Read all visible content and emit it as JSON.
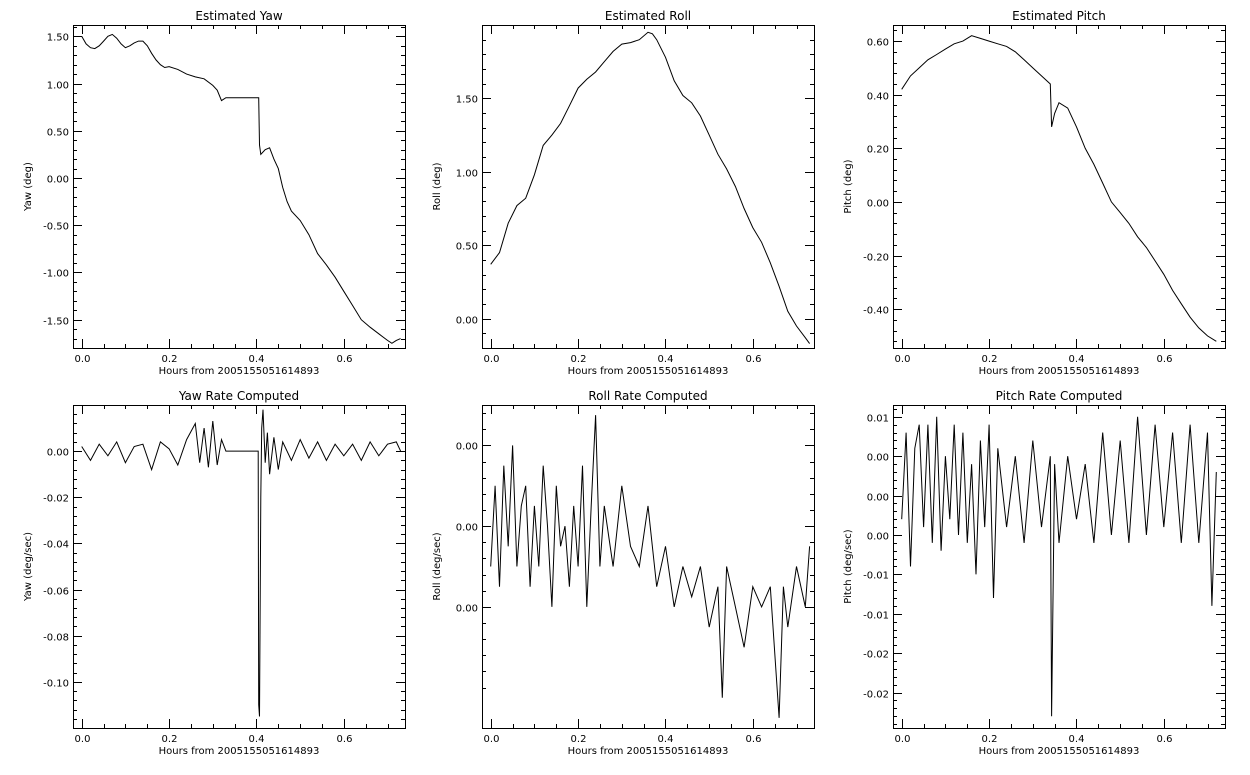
{
  "chart_data": [
    {
      "type": "line",
      "title": "Estimated Yaw",
      "xlabel": "Hours from 2005155051614893",
      "ylabel": "Yaw (deg)",
      "xlim": [
        -0.02,
        0.74
      ],
      "ylim": [
        -1.8,
        1.62
      ],
      "xticks": [
        0.0,
        0.2,
        0.4,
        0.6
      ],
      "xticklabels": [
        "0.0",
        "0.2",
        "0.4",
        "0.6"
      ],
      "yticks": [
        1.5,
        1.0,
        0.5,
        0.0,
        -0.5,
        -1.0,
        -1.5
      ],
      "yticklabels": [
        "1.50",
        "1.00",
        "0.50",
        "0.00",
        "-0.50",
        "-1.00",
        "-1.50"
      ],
      "series": [
        {
          "x": [
            0.0,
            0.01,
            0.02,
            0.03,
            0.04,
            0.05,
            0.06,
            0.07,
            0.08,
            0.09,
            0.1,
            0.11,
            0.12,
            0.13,
            0.14,
            0.15,
            0.16,
            0.17,
            0.18,
            0.19,
            0.2,
            0.22,
            0.24,
            0.26,
            0.28,
            0.3,
            0.31,
            0.32,
            0.33,
            0.36,
            0.405,
            0.407,
            0.41,
            0.42,
            0.43,
            0.44,
            0.45,
            0.46,
            0.47,
            0.48,
            0.5,
            0.52,
            0.54,
            0.56,
            0.58,
            0.6,
            0.62,
            0.64,
            0.66,
            0.68,
            0.7,
            0.71,
            0.72,
            0.73
          ],
          "y": [
            1.5,
            1.42,
            1.38,
            1.37,
            1.4,
            1.45,
            1.5,
            1.52,
            1.48,
            1.42,
            1.38,
            1.4,
            1.43,
            1.45,
            1.45,
            1.4,
            1.32,
            1.25,
            1.2,
            1.17,
            1.18,
            1.15,
            1.1,
            1.07,
            1.05,
            0.98,
            0.93,
            0.82,
            0.85,
            0.85,
            0.85,
            0.35,
            0.25,
            0.3,
            0.32,
            0.2,
            0.1,
            -0.1,
            -0.25,
            -0.35,
            -0.45,
            -0.6,
            -0.8,
            -0.92,
            -1.05,
            -1.2,
            -1.35,
            -1.5,
            -1.58,
            -1.65,
            -1.72,
            -1.75,
            -1.72,
            -1.7
          ]
        }
      ]
    },
    {
      "type": "line",
      "title": "Estimated Roll",
      "xlabel": "Hours from 2005155051614893",
      "ylabel": "Roll (deg)",
      "xlim": [
        -0.02,
        0.74
      ],
      "ylim": [
        -0.2,
        2.0
      ],
      "xticks": [
        0.0,
        0.2,
        0.4,
        0.6
      ],
      "xticklabels": [
        "0.0",
        "0.2",
        "0.4",
        "0.6"
      ],
      "yticks": [
        1.5,
        1.0,
        0.5,
        0.0
      ],
      "yticklabels": [
        "1.50",
        "1.00",
        "0.50",
        "0.00"
      ],
      "series": [
        {
          "x": [
            0.0,
            0.02,
            0.04,
            0.06,
            0.08,
            0.1,
            0.12,
            0.14,
            0.16,
            0.18,
            0.2,
            0.22,
            0.24,
            0.26,
            0.28,
            0.3,
            0.32,
            0.34,
            0.36,
            0.37,
            0.38,
            0.4,
            0.42,
            0.44,
            0.46,
            0.48,
            0.5,
            0.52,
            0.54,
            0.56,
            0.58,
            0.6,
            0.62,
            0.64,
            0.66,
            0.68,
            0.7,
            0.72,
            0.73
          ],
          "y": [
            0.37,
            0.45,
            0.65,
            0.77,
            0.82,
            0.98,
            1.18,
            1.25,
            1.33,
            1.45,
            1.57,
            1.63,
            1.68,
            1.75,
            1.82,
            1.87,
            1.88,
            1.9,
            1.95,
            1.94,
            1.9,
            1.78,
            1.62,
            1.52,
            1.47,
            1.38,
            1.25,
            1.12,
            1.02,
            0.9,
            0.75,
            0.62,
            0.52,
            0.38,
            0.22,
            0.05,
            -0.05,
            -0.13,
            -0.17
          ]
        }
      ]
    },
    {
      "type": "line",
      "title": "Estimated Pitch",
      "xlabel": "Hours from 2005155051614893",
      "ylabel": "Pitch (deg)",
      "xlim": [
        -0.02,
        0.74
      ],
      "ylim": [
        -0.545,
        0.66
      ],
      "xticks": [
        0.0,
        0.2,
        0.4,
        0.6
      ],
      "xticklabels": [
        "0.0",
        "0.2",
        "0.4",
        "0.6"
      ],
      "yticks": [
        0.6,
        0.4,
        0.2,
        0.0,
        -0.2,
        -0.4
      ],
      "yticklabels": [
        "0.60",
        "0.40",
        "0.20",
        "0.00",
        "-0.20",
        "-0.40"
      ],
      "series": [
        {
          "x": [
            0.0,
            0.02,
            0.04,
            0.06,
            0.08,
            0.1,
            0.12,
            0.14,
            0.16,
            0.18,
            0.2,
            0.22,
            0.24,
            0.26,
            0.28,
            0.3,
            0.32,
            0.34,
            0.343,
            0.35,
            0.36,
            0.38,
            0.4,
            0.42,
            0.44,
            0.46,
            0.48,
            0.5,
            0.52,
            0.54,
            0.56,
            0.58,
            0.6,
            0.62,
            0.64,
            0.66,
            0.68,
            0.7,
            0.72
          ],
          "y": [
            0.42,
            0.47,
            0.5,
            0.53,
            0.55,
            0.57,
            0.59,
            0.6,
            0.62,
            0.61,
            0.6,
            0.59,
            0.58,
            0.56,
            0.53,
            0.5,
            0.47,
            0.44,
            0.28,
            0.33,
            0.37,
            0.35,
            0.28,
            0.2,
            0.14,
            0.07,
            0.0,
            -0.04,
            -0.08,
            -0.13,
            -0.17,
            -0.22,
            -0.27,
            -0.33,
            -0.38,
            -0.43,
            -0.47,
            -0.5,
            -0.52
          ]
        }
      ]
    },
    {
      "type": "line",
      "title": "Yaw Rate Computed",
      "xlabel": "Hours from 2005155051614893",
      "ylabel": "Yaw (deg/sec)",
      "xlim": [
        -0.02,
        0.74
      ],
      "ylim": [
        -0.12,
        0.02
      ],
      "xticks": [
        0.0,
        0.2,
        0.4,
        0.6
      ],
      "xticklabels": [
        "0.0",
        "0.2",
        "0.4",
        "0.6"
      ],
      "yticks": [
        0.0,
        -0.02,
        -0.04,
        -0.06,
        -0.08,
        -0.1
      ],
      "yticklabels": [
        "0.00",
        "-0.02",
        "-0.04",
        "-0.06",
        "-0.08",
        "-0.10"
      ],
      "series": [
        {
          "x": [
            0.0,
            0.02,
            0.04,
            0.06,
            0.08,
            0.1,
            0.12,
            0.14,
            0.16,
            0.18,
            0.2,
            0.22,
            0.24,
            0.26,
            0.27,
            0.28,
            0.29,
            0.3,
            0.31,
            0.32,
            0.33,
            0.4,
            0.404,
            0.405,
            0.407,
            0.41,
            0.412,
            0.415,
            0.42,
            0.425,
            0.43,
            0.44,
            0.45,
            0.46,
            0.48,
            0.5,
            0.52,
            0.54,
            0.56,
            0.58,
            0.6,
            0.62,
            0.64,
            0.66,
            0.68,
            0.7,
            0.72,
            0.73
          ],
          "y": [
            0.002,
            -0.004,
            0.003,
            -0.002,
            0.004,
            -0.005,
            0.002,
            0.003,
            -0.008,
            0.004,
            0.001,
            -0.006,
            0.005,
            0.012,
            -0.005,
            0.01,
            -0.007,
            0.013,
            -0.006,
            0.005,
            0.0,
            0.0,
            0.0,
            -0.11,
            -0.115,
            -0.02,
            0.01,
            0.018,
            -0.005,
            0.008,
            -0.01,
            0.006,
            -0.008,
            0.004,
            -0.004,
            0.005,
            -0.003,
            0.004,
            -0.004,
            0.003,
            -0.002,
            0.003,
            -0.004,
            0.004,
            -0.002,
            0.003,
            0.004,
            0.0
          ]
        }
      ]
    },
    {
      "type": "line",
      "title": "Roll Rate Computed",
      "xlabel": "Hours from 2005155051614893",
      "ylabel": "Roll (deg/sec)",
      "xlim": [
        -0.02,
        0.74
      ],
      "ylim": [
        -0.01,
        0.006
      ],
      "xticks": [
        0.0,
        0.2,
        0.4,
        0.6
      ],
      "xticklabels": [
        "0.0",
        "0.2",
        "0.4",
        "0.6"
      ],
      "yticks": [
        0.004,
        0.0,
        -0.004
      ],
      "yticklabels": [
        "0.00",
        "0.00",
        "0.00"
      ],
      "series": [
        {
          "x": [
            0.0,
            0.01,
            0.02,
            0.03,
            0.04,
            0.05,
            0.06,
            0.07,
            0.08,
            0.09,
            0.1,
            0.11,
            0.12,
            0.13,
            0.14,
            0.15,
            0.16,
            0.17,
            0.18,
            0.19,
            0.2,
            0.21,
            0.22,
            0.23,
            0.24,
            0.25,
            0.26,
            0.28,
            0.3,
            0.32,
            0.34,
            0.36,
            0.38,
            0.4,
            0.42,
            0.44,
            0.46,
            0.48,
            0.5,
            0.52,
            0.53,
            0.54,
            0.56,
            0.58,
            0.6,
            0.62,
            0.64,
            0.66,
            0.67,
            0.68,
            0.7,
            0.72,
            0.73
          ],
          "y": [
            -0.002,
            0.002,
            -0.003,
            0.003,
            -0.001,
            0.004,
            -0.002,
            0.001,
            0.002,
            -0.003,
            0.001,
            -0.002,
            0.003,
            0.0,
            -0.004,
            0.002,
            -0.001,
            0.0,
            -0.003,
            0.001,
            -0.002,
            0.003,
            -0.004,
            0.001,
            0.0055,
            -0.002,
            0.001,
            -0.002,
            0.002,
            -0.001,
            -0.002,
            0.001,
            -0.003,
            -0.001,
            -0.004,
            -0.002,
            -0.0035,
            -0.002,
            -0.005,
            -0.003,
            -0.0085,
            -0.002,
            -0.004,
            -0.006,
            -0.003,
            -0.004,
            -0.003,
            -0.0095,
            -0.003,
            -0.005,
            -0.002,
            -0.004,
            -0.001
          ]
        }
      ]
    },
    {
      "type": "line",
      "title": "Pitch Rate Computed",
      "xlabel": "Hours from 2005155051614893",
      "ylabel": "Pitch (deg/sec)",
      "xlim": [
        -0.02,
        0.74
      ],
      "ylim": [
        -0.0295,
        0.0115
      ],
      "xticks": [
        0.0,
        0.2,
        0.4,
        0.6
      ],
      "xticklabels": [
        "0.0",
        "0.2",
        "0.4",
        "0.6"
      ],
      "yticks": [
        0.01,
        0.005,
        0.0,
        -0.005,
        -0.01,
        -0.015,
        -0.02,
        -0.025
      ],
      "yticklabels": [
        "0.01",
        "0.00",
        "0.00",
        "0.00",
        "-0.01",
        "-0.01",
        "-0.02",
        "-0.02"
      ],
      "series": [
        {
          "x": [
            0.0,
            0.01,
            0.02,
            0.03,
            0.04,
            0.05,
            0.06,
            0.07,
            0.08,
            0.09,
            0.1,
            0.11,
            0.12,
            0.13,
            0.14,
            0.15,
            0.16,
            0.17,
            0.18,
            0.19,
            0.2,
            0.21,
            0.22,
            0.24,
            0.26,
            0.28,
            0.3,
            0.32,
            0.34,
            0.343,
            0.35,
            0.36,
            0.38,
            0.4,
            0.42,
            0.44,
            0.46,
            0.48,
            0.5,
            0.52,
            0.54,
            0.56,
            0.58,
            0.6,
            0.62,
            0.64,
            0.66,
            0.68,
            0.7,
            0.71,
            0.72
          ],
          "y": [
            -0.003,
            0.008,
            -0.009,
            0.006,
            0.009,
            -0.004,
            0.009,
            -0.006,
            0.01,
            -0.007,
            0.005,
            -0.003,
            0.009,
            -0.005,
            0.008,
            -0.006,
            0.004,
            -0.01,
            0.007,
            -0.004,
            0.009,
            -0.013,
            0.006,
            -0.004,
            0.005,
            -0.006,
            0.007,
            -0.004,
            0.005,
            -0.028,
            0.004,
            -0.006,
            0.005,
            -0.003,
            0.004,
            -0.006,
            0.008,
            -0.005,
            0.007,
            -0.006,
            0.01,
            -0.005,
            0.009,
            -0.004,
            0.008,
            -0.006,
            0.009,
            -0.006,
            0.008,
            -0.014,
            0.003
          ]
        }
      ]
    }
  ]
}
